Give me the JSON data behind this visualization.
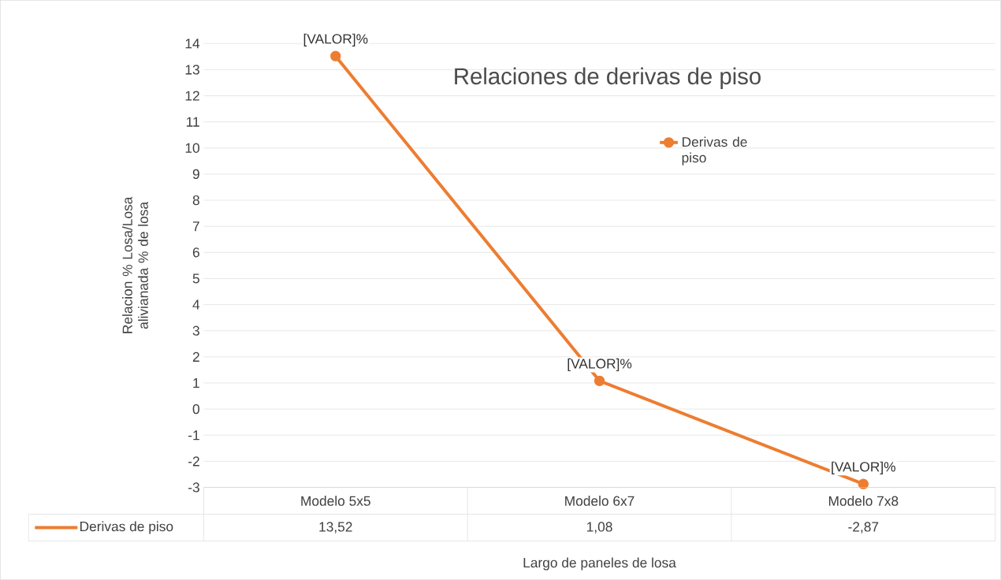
{
  "chart_data": {
    "type": "line",
    "title": "Relaciones de derivas de piso",
    "xlabel": "Largo de paneles de losa",
    "ylabel": "Relacion % Losa/Losa alivianada % de losa",
    "categories": [
      "Modelo 5x5",
      "Modelo 6x7",
      "Modelo 7x8"
    ],
    "series": [
      {
        "name": "Derivas de piso",
        "color": "#ed7d31",
        "values": [
          13.52,
          1.08,
          -2.87
        ],
        "value_labels": [
          "13,52",
          "1,08",
          "-2,87"
        ]
      }
    ],
    "ylim": [
      -3,
      14
    ],
    "yticks": [
      -3,
      -2,
      -1,
      0,
      1,
      2,
      3,
      4,
      5,
      6,
      7,
      8,
      9,
      10,
      11,
      12,
      13,
      14
    ],
    "grid": "y",
    "legend": "top right",
    "marker": "circle",
    "line_style": "solid",
    "annotations": [
      {
        "text": "[VALOR]%",
        "x": "Modelo 5x5",
        "y": 13.52
      },
      {
        "text": "[VALOR]%",
        "x": "Modelo 6x7",
        "y": 1.08
      },
      {
        "text": "[VALOR]%",
        "x": "Modelo 7x8",
        "y": -2.87
      }
    ]
  }
}
